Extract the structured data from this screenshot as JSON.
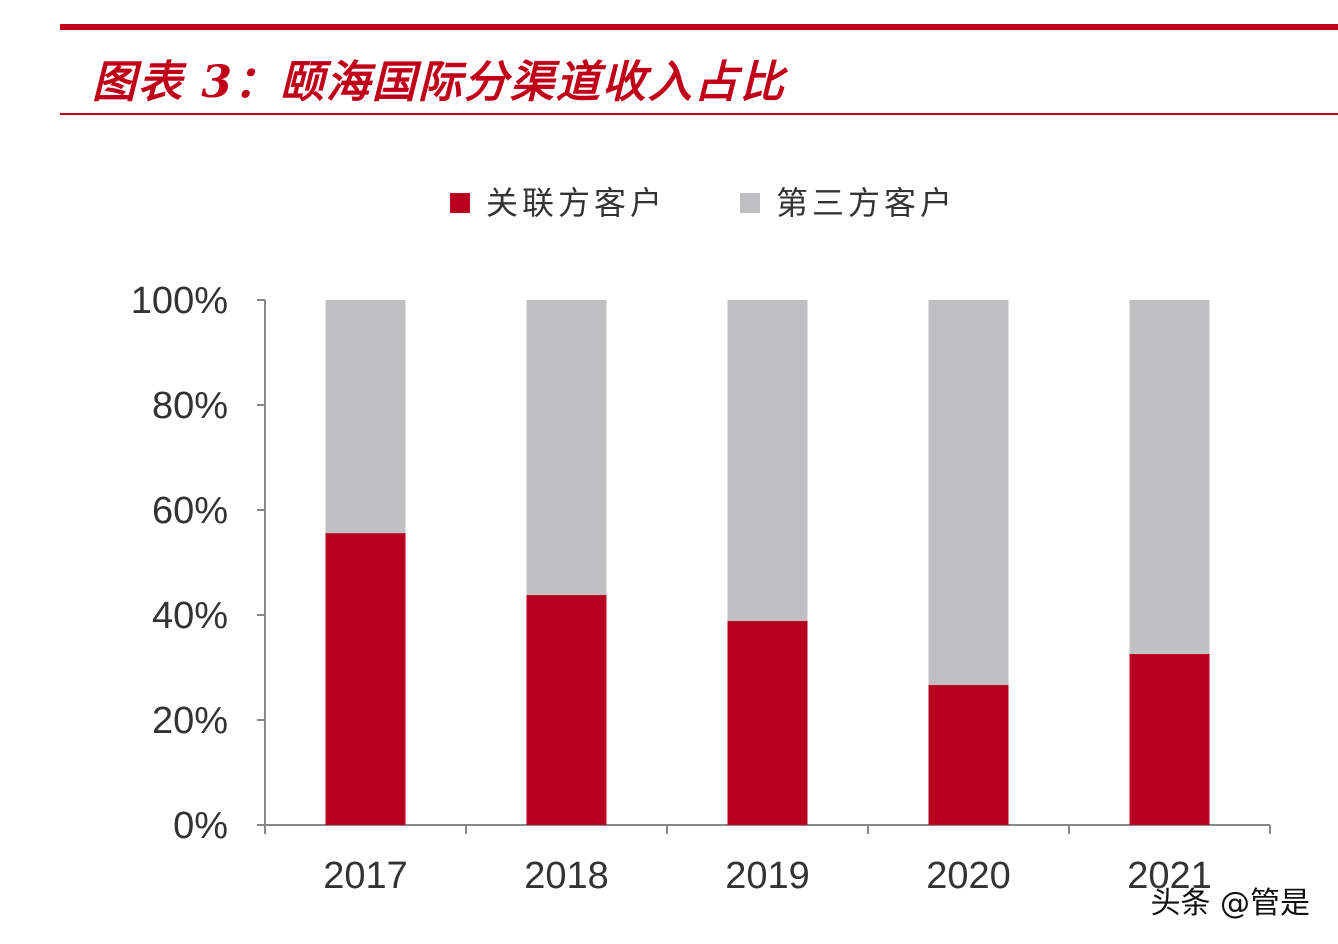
{
  "title": "图表 3：颐海国际分渠道收入占比",
  "watermark": "头条 @管是",
  "chart_data": {
    "type": "bar",
    "stacked": true,
    "categories": [
      "2017",
      "2018",
      "2019",
      "2020",
      "2021"
    ],
    "series": [
      {
        "name": "关联方客户",
        "color": "#b8001f",
        "values": [
          55.6,
          43.8,
          38.9,
          26.7,
          32.6
        ]
      },
      {
        "name": "第三方客户",
        "color": "#c0c0c2",
        "values": [
          44.4,
          56.2,
          61.1,
          73.3,
          67.4
        ]
      }
    ],
    "ylim": [
      0,
      100
    ],
    "yticks": [
      "0%",
      "20%",
      "40%",
      "60%",
      "80%",
      "100%"
    ],
    "legend": "top",
    "grid": false,
    "xlabel": "",
    "ylabel": ""
  }
}
